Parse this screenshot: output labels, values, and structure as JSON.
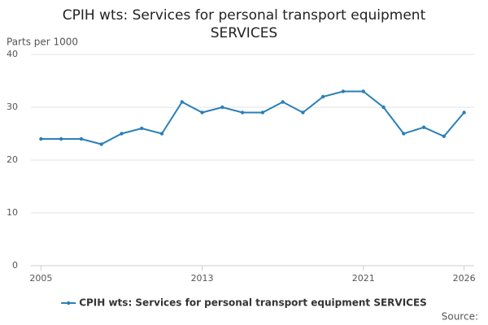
{
  "chart_data": {
    "type": "line",
    "title": "CPIH wts: Services for personal transport equipment SERVICES",
    "y_label": "Parts per 1000",
    "x": [
      2005,
      2006,
      2007,
      2008,
      2009,
      2010,
      2011,
      2012,
      2013,
      2014,
      2015,
      2016,
      2017,
      2018,
      2019,
      2020,
      2021,
      2022,
      2023,
      2024,
      2025,
      2026
    ],
    "series": [
      {
        "name": "CPIH wts: Services for personal transport equipment SERVICES",
        "color": "#2a7fb8",
        "values": [
          24,
          24,
          24,
          23,
          25,
          26,
          25,
          31,
          29,
          30,
          29,
          29,
          31,
          29,
          32,
          33,
          33,
          30,
          25,
          26.2,
          24.5,
          29
        ]
      }
    ],
    "xlim": [
      2004.5,
      2026.5
    ],
    "xticks": [
      2005,
      2013,
      2021,
      2026
    ],
    "ylim": [
      0,
      40
    ],
    "yticks": [
      0,
      10,
      20,
      30,
      40
    ],
    "grid": true,
    "legend": "bottom",
    "source": "Source:"
  }
}
